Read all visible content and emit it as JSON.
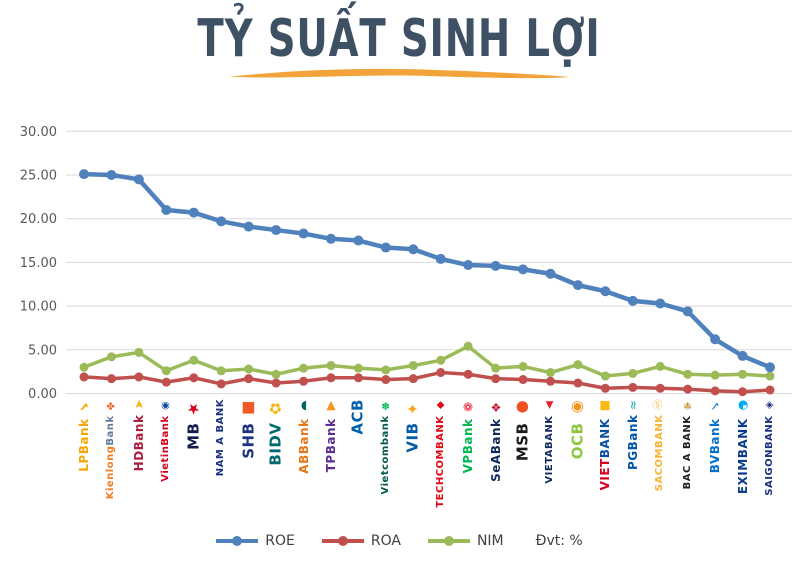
{
  "title": "TỶ SUẤT SINH LỢI",
  "colors": {
    "title": "#3E5064",
    "underline": "#F2A33A",
    "grid": "#D9D9D9",
    "tick_text": "#595959",
    "roe": "#4F81BD",
    "roa": "#C0504D",
    "nim": "#9BBB59"
  },
  "chart_data": {
    "type": "line",
    "title": "TỶ SUẤT SINH LỢI",
    "unit_note": "Đvt: %",
    "ylim": [
      0,
      30
    ],
    "yticks": [
      "0.00",
      "5.00",
      "10.00",
      "15.00",
      "20.00",
      "25.00",
      "30.00"
    ],
    "grid": true,
    "legend_position": "bottom",
    "categories": [
      "LPBank",
      "KienlongBank",
      "HDBank",
      "VietinBank",
      "MB",
      "NAM A BANK",
      "SHB",
      "BIDV",
      "ABBank",
      "TPBank",
      "ACB",
      "Vietcombank",
      "VIB",
      "TECHCOMBANK",
      "VPBank",
      "SeABank",
      "MSB",
      "VIETABANK",
      "OCB",
      "VIETBANK",
      "PGBank",
      "SACOMBANK",
      "BAC A BANK",
      "BVBank",
      "EXIMBANK",
      "SAIGONBANK"
    ],
    "series": [
      {
        "name": "ROE",
        "color": "#4F81BD",
        "values": [
          25.1,
          25.0,
          24.5,
          21.0,
          20.7,
          19.7,
          19.1,
          18.7,
          18.3,
          17.7,
          17.5,
          16.7,
          16.5,
          15.4,
          14.7,
          14.6,
          14.2,
          13.7,
          12.4,
          11.7,
          10.6,
          10.3,
          9.4,
          6.2,
          4.3,
          3.0
        ]
      },
      {
        "name": "ROA",
        "color": "#C0504D",
        "values": [
          1.9,
          1.7,
          1.9,
          1.3,
          1.8,
          1.1,
          1.7,
          1.2,
          1.4,
          1.8,
          1.8,
          1.6,
          1.7,
          2.4,
          2.2,
          1.7,
          1.6,
          1.4,
          1.2,
          0.6,
          0.7,
          0.6,
          0.5,
          0.3,
          0.2,
          0.4
        ]
      },
      {
        "name": "NIM",
        "color": "#9BBB59",
        "values": [
          3.0,
          4.2,
          4.7,
          2.6,
          3.8,
          2.6,
          2.8,
          2.2,
          2.9,
          3.2,
          2.9,
          2.7,
          3.2,
          3.8,
          5.4,
          2.9,
          3.1,
          2.4,
          3.3,
          2.0,
          2.3,
          3.1,
          2.2,
          2.1,
          2.2,
          2.0
        ]
      }
    ]
  },
  "bank_labels": [
    {
      "id": "lpbank",
      "icon": "✔",
      "ic": "#F7A600",
      "parts": [
        {
          "t": "LPBank",
          "c": "#F7A600"
        }
      ]
    },
    {
      "id": "kienlongbank",
      "icon": "✤",
      "ic": "#F15D22",
      "parts": [
        {
          "t": "Kienlong",
          "c": "#F47B20"
        },
        {
          "t": "Bank",
          "c": "#607B99"
        }
      ]
    },
    {
      "id": "hdbank",
      "icon": "➤",
      "ic": "#F9B316",
      "parts": [
        {
          "t": "HDBank",
          "c": "#AE1C3F"
        }
      ]
    },
    {
      "id": "vietinbank",
      "icon": "◉",
      "ic": "#0B4EA2",
      "parts": [
        {
          "t": "VietinBank",
          "c": "#D6001C"
        }
      ]
    },
    {
      "id": "mb",
      "icon": "★",
      "ic": "#D6001C",
      "parts": [
        {
          "t": "MB",
          "c": "#141B4D"
        }
      ]
    },
    {
      "id": "namabank",
      "icon": "",
      "ic": "",
      "parts": [
        {
          "t": "NAM A BANK",
          "c": "#1B3281"
        }
      ]
    },
    {
      "id": "shb",
      "icon": "■",
      "ic": "#F15A22",
      "parts": [
        {
          "t": "SHB",
          "c": "#1B3281"
        }
      ]
    },
    {
      "id": "bidv",
      "icon": "✿",
      "ic": "#F9B316",
      "parts": [
        {
          "t": "BIDV",
          "c": "#006A71"
        }
      ]
    },
    {
      "id": "abbank",
      "icon": "◗",
      "ic": "#00685E",
      "parts": [
        {
          "t": "ABBank",
          "c": "#E77817"
        }
      ]
    },
    {
      "id": "tpbank",
      "icon": "▼",
      "ic": "#F7941D",
      "parts": [
        {
          "t": "TPBank",
          "c": "#5C2E91"
        }
      ]
    },
    {
      "id": "acb",
      "icon": "",
      "ic": "",
      "parts": [
        {
          "t": "ACB",
          "c": "#0060AF"
        }
      ]
    },
    {
      "id": "vietcombank",
      "icon": "✽",
      "ic": "#00B74F",
      "parts": [
        {
          "t": "Vietcombank",
          "c": "#00594C"
        }
      ]
    },
    {
      "id": "vib",
      "icon": "✦",
      "ic": "#F9A51A",
      "parts": [
        {
          "t": "VIB",
          "c": "#005BAA"
        }
      ]
    },
    {
      "id": "techcombank",
      "icon": "◆",
      "ic": "#E30613",
      "parts": [
        {
          "t": "TECHCOMBANK",
          "c": "#E30613"
        }
      ]
    },
    {
      "id": "vpbank",
      "icon": "❁",
      "ic": "#ED1B2F",
      "parts": [
        {
          "t": "VPBank",
          "c": "#00B74F"
        }
      ]
    },
    {
      "id": "seabank",
      "icon": "❖",
      "ic": "#C8102E",
      "parts": [
        {
          "t": "SeABank",
          "c": "#0F2B5B"
        }
      ]
    },
    {
      "id": "msb",
      "icon": "●",
      "ic": "#F05023",
      "parts": [
        {
          "t": "MSB",
          "c": "#1A1A1A"
        }
      ]
    },
    {
      "id": "vietabank",
      "icon": "▲",
      "ic": "#ED1B2F",
      "parts": [
        {
          "t": "VIETABANK",
          "c": "#0F2B5B"
        }
      ]
    },
    {
      "id": "ocb",
      "icon": "◉",
      "ic": "#F7941D",
      "parts": [
        {
          "t": "OCB",
          "c": "#8DC63F"
        }
      ]
    },
    {
      "id": "vietbank",
      "icon": "■",
      "ic": "#FDB913",
      "parts": [
        {
          "t": "VIET",
          "c": "#D6001C"
        },
        {
          "t": "BANK",
          "c": "#0B4EA2"
        }
      ]
    },
    {
      "id": "pgbank",
      "icon": "≈",
      "ic": "#00A5B5",
      "parts": [
        {
          "t": "PGBank",
          "c": "#0056A6"
        }
      ]
    },
    {
      "id": "sacombank",
      "icon": "Ⓢ",
      "ic": "#F8B334",
      "parts": [
        {
          "t": "SACOMBANK",
          "c": "#F8B334"
        }
      ]
    },
    {
      "id": "bacabank",
      "icon": "✾",
      "ic": "#C49A3A",
      "parts": [
        {
          "t": "BAC A BANK",
          "c": "#231F20"
        }
      ]
    },
    {
      "id": "bvbank",
      "icon": "✓",
      "ic": "#0072CE",
      "parts": [
        {
          "t": "BVBank",
          "c": "#0072CE"
        }
      ]
    },
    {
      "id": "eximbank",
      "icon": "◕",
      "ic": "#00AEEF",
      "parts": [
        {
          "t": "EXIMBANK",
          "c": "#0B3B8C"
        }
      ]
    },
    {
      "id": "saigonbank",
      "icon": "◈",
      "ic": "#1B3281",
      "parts": [
        {
          "t": "SAIGONBANK",
          "c": "#1B3281"
        }
      ]
    }
  ]
}
